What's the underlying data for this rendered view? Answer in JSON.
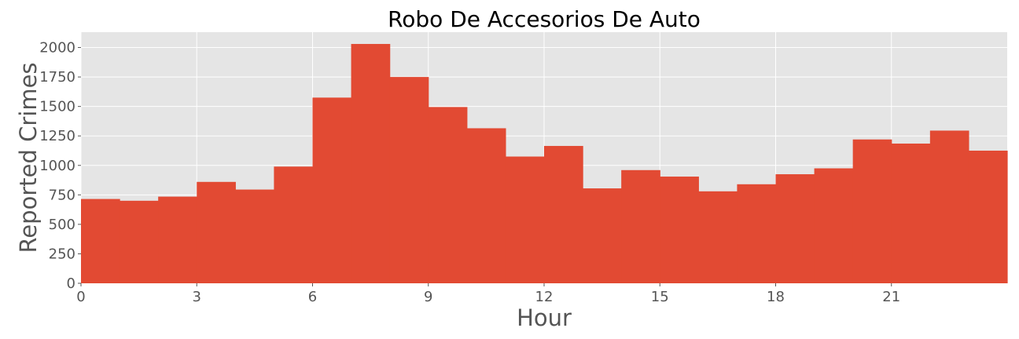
{
  "chart_data": {
    "type": "bar",
    "title": "Robo De Accesorios De Auto",
    "xlabel": "Hour",
    "ylabel": "Reported Crimes",
    "x": [
      0,
      1,
      2,
      3,
      4,
      5,
      6,
      7,
      8,
      9,
      10,
      11,
      12,
      13,
      14,
      15,
      16,
      17,
      18,
      19,
      20,
      21,
      22,
      23
    ],
    "values": [
      715,
      700,
      735,
      860,
      795,
      990,
      1575,
      2030,
      1750,
      1495,
      1315,
      1075,
      1165,
      805,
      960,
      905,
      780,
      840,
      925,
      975,
      1220,
      1185,
      1295,
      1125
    ],
    "xticks": [
      0,
      3,
      6,
      9,
      12,
      15,
      18,
      21
    ],
    "yticks": [
      0,
      250,
      500,
      750,
      1000,
      1250,
      1500,
      1750,
      2000
    ],
    "xlim": [
      0,
      24
    ],
    "ylim": [
      0,
      2130
    ],
    "grid": true,
    "colors": {
      "bar": "#E24A33",
      "plot_background": "#E5E5E5",
      "grid": "#FFFFFF",
      "text": "#555555"
    }
  }
}
